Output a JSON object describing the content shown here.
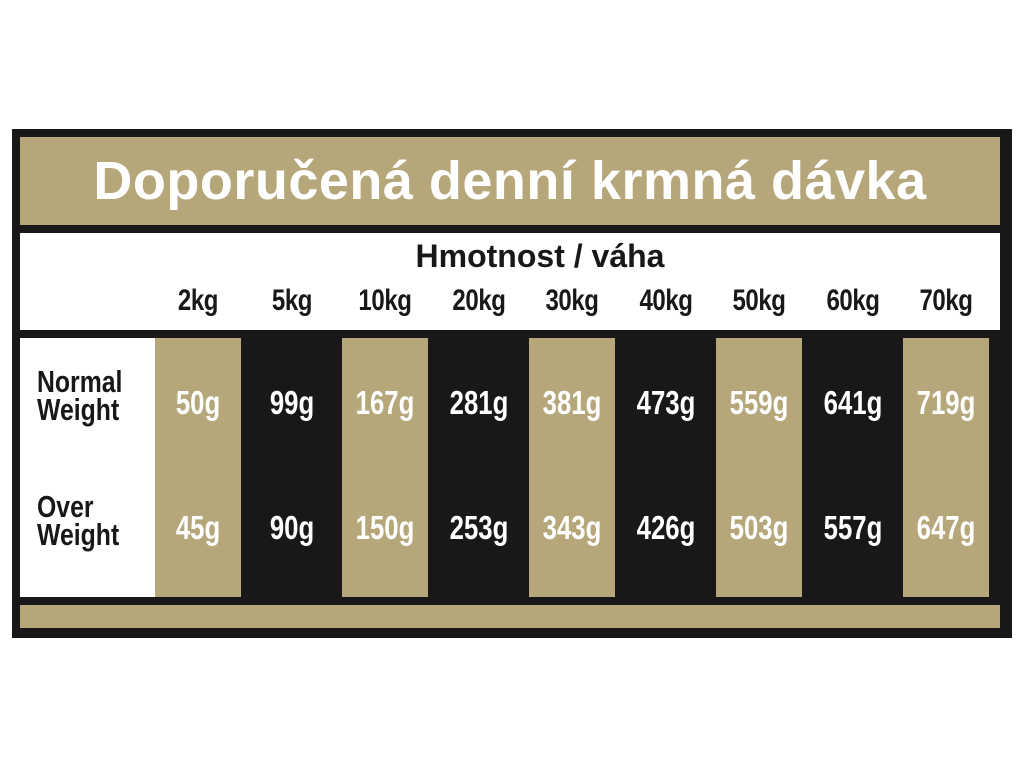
{
  "title": "Doporučená denní krmná dávka",
  "header": {
    "label": "Hmotnost / váha",
    "columns": [
      "2kg",
      "5kg",
      "10kg",
      "20kg",
      "30kg",
      "40kg",
      "50kg",
      "60kg",
      "70kg"
    ]
  },
  "rows": [
    {
      "label": "Normal Weight",
      "values": [
        "50g",
        "99g",
        "167g",
        "281g",
        "381g",
        "473g",
        "559g",
        "641g",
        "719g"
      ]
    },
    {
      "label": "Over Weight",
      "values": [
        "45g",
        "90g",
        "150g",
        "253g",
        "343g",
        "426g",
        "503g",
        "557g",
        "647g"
      ]
    }
  ]
}
